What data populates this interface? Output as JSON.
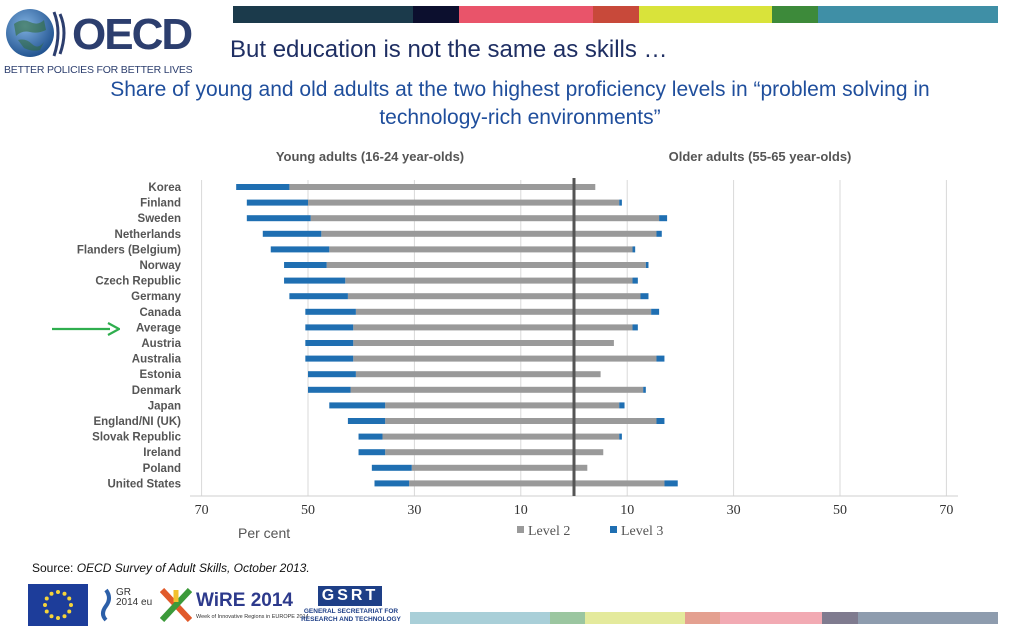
{
  "header": {
    "logo_text": "OECD",
    "tagline": "BETTER POLICIES FOR BETTER LIVES",
    "title": "But education is not the same as skills …",
    "subtitle": "Share of young and old adults at the two highest proficiency levels in “problem solving in technology-rich environments”",
    "top_bar_colors": [
      "#1b3a4b",
      "#0c0f2e",
      "#e9546a",
      "#e9546a",
      "#c8493a",
      "#d9e33a",
      "#d9e33a",
      "#3d8a3a",
      "#3f8fa6"
    ],
    "bottom_bar_colors": [
      "#a9cfd8",
      "#9bc6a0",
      "#e4ea9c",
      "#e4ea9c",
      "#e4a090",
      "#f2aab3",
      "#f2aab3",
      "#7f7b8f",
      "#8e9cae"
    ]
  },
  "chart_data": {
    "type": "bar",
    "subtype": "back-to-back horizontal stacked bar",
    "panel_titles": [
      "Young adults (16-24 year-olds)",
      "Older adults (55-65 year-olds)"
    ],
    "xlabel": "Per cent",
    "x_ticks": [
      "70",
      "50",
      "30",
      "10",
      "10",
      "30",
      "50",
      "70"
    ],
    "xlim": [
      -70,
      70
    ],
    "grid": true,
    "legend": {
      "position": "bottom-right",
      "entries": [
        "Level 2",
        "Level 3"
      ]
    },
    "categories": [
      "Korea",
      "Finland",
      "Sweden",
      "Netherlands",
      "Flanders (Belgium)",
      "Norway",
      "Czech Republic",
      "Germany",
      "Canada",
      "Average",
      "Austria",
      "Australia",
      "Estonia",
      "Denmark",
      "Japan",
      "England/NI (UK)",
      "Slovak Republic",
      "Ireland",
      "Poland",
      "United States"
    ],
    "highlight": "Average",
    "series": [
      {
        "name": "Level 2",
        "color": "#9a9a9a",
        "side": "young",
        "values": [
          53.5,
          50,
          49.5,
          47.5,
          46,
          46.5,
          43,
          42.5,
          41,
          41.5,
          41.5,
          41.5,
          41,
          42,
          35.5,
          35.5,
          36,
          35.5,
          30.5,
          31
        ]
      },
      {
        "name": "Level 3",
        "color": "#1f6fb2",
        "side": "young",
        "values": [
          10,
          11.5,
          12,
          11,
          11,
          8,
          11.5,
          11,
          9.5,
          9,
          9,
          9,
          9,
          8,
          10.5,
          7,
          4.5,
          5,
          7.5,
          6.5
        ]
      },
      {
        "name": "Level 2",
        "color": "#9a9a9a",
        "side": "old",
        "values": [
          4,
          8.5,
          16,
          15.5,
          11,
          13.5,
          11,
          12.5,
          14.5,
          11,
          7.5,
          15.5,
          5,
          13,
          8.5,
          15.5,
          8.5,
          5.5,
          2.5,
          17
        ]
      },
      {
        "name": "Level 3",
        "color": "#1f6fb2",
        "side": "old",
        "values": [
          0,
          0.5,
          1.5,
          1,
          0.5,
          0.5,
          1,
          1.5,
          1.5,
          1,
          0,
          1.5,
          0,
          0.5,
          1,
          1.5,
          0.5,
          0,
          0,
          2.5
        ]
      }
    ]
  },
  "footer": {
    "source_label": "Source: ",
    "source_text": "OECD Survey of Adult Skills, October 2013.",
    "gr_text": "GR 2014 eu",
    "wire_text": "WiRE 2014",
    "wire_sub": "Week of Innovative Regions in EUROPE 2014",
    "gsrt_text": "GSRT",
    "gsrt_sub": "GENERAL SECRETARIAT FOR RESEARCH AND TECHNOLOGY"
  }
}
